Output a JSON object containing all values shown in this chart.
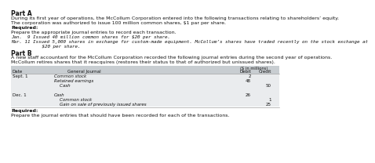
{
  "bg_color": "#ffffff",
  "part_a_title": "Part A",
  "part_a_line1": "During its first year of operations, the McCollum Corporation entered into the following transactions relating to shareholders’ equity.",
  "part_a_line2": "The corporation was authorized to issue 100 million common shares, $1 par per share.",
  "required_label": "Required:",
  "part_a_req": "Prepare the appropriate journal entries to record each transaction.",
  "part_a_t1": "Jan.  9 Issued 40 million common shares for $20 per share.",
  "part_a_t2": "Mar. 11 Issued 5,000 shares in exchange for custom-made equipment. McCollum’s shares have traded recently on the stock exchange at",
  "part_a_t3": "         $20 per share.",
  "part_b_title": "Part B",
  "part_b_line1": "A new staff accountant for the McCollum Corporation recorded the following journal entries during the second year of operations.",
  "part_b_line2": "McCollum retires shares that it reacquires (restores their status to that of authorized but unissued shares).",
  "table_super": "($ in millions)",
  "col_date": "Date",
  "col_journal": "General Journal",
  "col_debit": "Debit",
  "col_credit": "Credit",
  "rows": [
    [
      "Sept. 1",
      "Common stock",
      "2",
      ""
    ],
    [
      "",
      "Retained earnings",
      "48",
      ""
    ],
    [
      "",
      "    Cash",
      "",
      "50"
    ],
    [
      "",
      "",
      "",
      ""
    ],
    [
      "Dec. 1",
      "Cash",
      "26",
      ""
    ],
    [
      "",
      "    Common stock",
      "",
      "1"
    ],
    [
      "",
      "    Gain on sale of previously issued shares",
      "",
      "25"
    ]
  ],
  "part_b_req": "Required:",
  "part_b_req_body": "Prepare the journal entries that should have been recorded for each of the transactions.",
  "table_header_bg": "#c8cdd1",
  "table_row_bg": "#eaecee",
  "fs_title": 5.5,
  "fs_body": 4.5,
  "fs_mono": 4.2,
  "fs_table": 4.0
}
